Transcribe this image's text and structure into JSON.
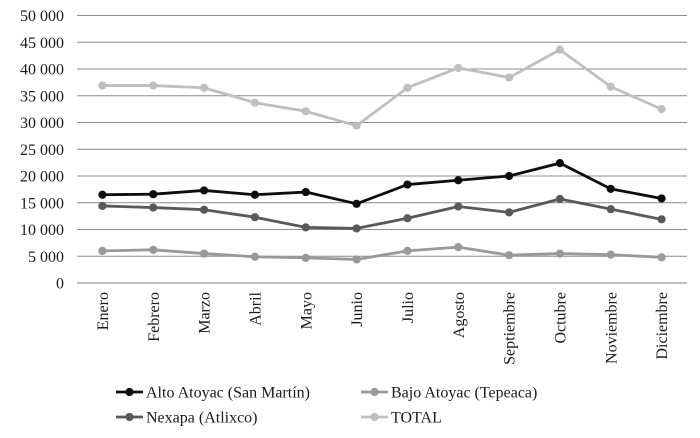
{
  "chart_data": {
    "type": "line",
    "title": "",
    "xlabel": "",
    "ylabel": "",
    "categories": [
      "Enero",
      "Febrero",
      "Marzo",
      "Abril",
      "Mayo",
      "Junio",
      "Julio",
      "Agosto",
      "Septiembre",
      "Octubre",
      "Noviembre",
      "Diciembre"
    ],
    "series": [
      {
        "name": "Alto Atoyac (San Martín)",
        "color": "#0d0d0d",
        "values": [
          16500,
          16600,
          17300,
          16500,
          17000,
          14800,
          18400,
          19200,
          20000,
          22400,
          17600,
          15800
        ]
      },
      {
        "name": "Bajo Atoyac (Tepeaca)",
        "color": "#999999",
        "values": [
          6000,
          6200,
          5500,
          4900,
          4700,
          4400,
          6000,
          6700,
          5200,
          5500,
          5300,
          4800
        ]
      },
      {
        "name": "Nexapa (Atlixco)",
        "color": "#595959",
        "values": [
          14400,
          14100,
          13700,
          12300,
          10400,
          10200,
          12100,
          14300,
          13200,
          15700,
          13800,
          11900
        ]
      },
      {
        "name": "TOTAL",
        "color": "#bfbfbf",
        "values": [
          36900,
          36900,
          36500,
          33700,
          32100,
          29400,
          36500,
          40200,
          38400,
          43600,
          36700,
          32500
        ]
      }
    ],
    "ylim": [
      0,
      50000
    ],
    "ytick_step": 5000,
    "ytick_labels": [
      "0",
      "5 000",
      "10 000",
      "15 000",
      "20 000",
      "25 000",
      "30 000",
      "35 000",
      "40 000",
      "45 000",
      "50 000"
    ],
    "grid": true,
    "marker": "circle",
    "legend_position": "bottom",
    "legend_columns": 2,
    "legend_order": [
      "Alto Atoyac (San Martín)",
      "Bajo Atoyac (Tepeaca)",
      "Nexapa (Atlixco)",
      "TOTAL"
    ]
  },
  "colors": {
    "background": "#ffffff",
    "gridline": "#8c8c8c",
    "axis_line": "#7f7f7f",
    "tick_label": "#1a1a1a",
    "legend_text": "#1a1a1a"
  }
}
